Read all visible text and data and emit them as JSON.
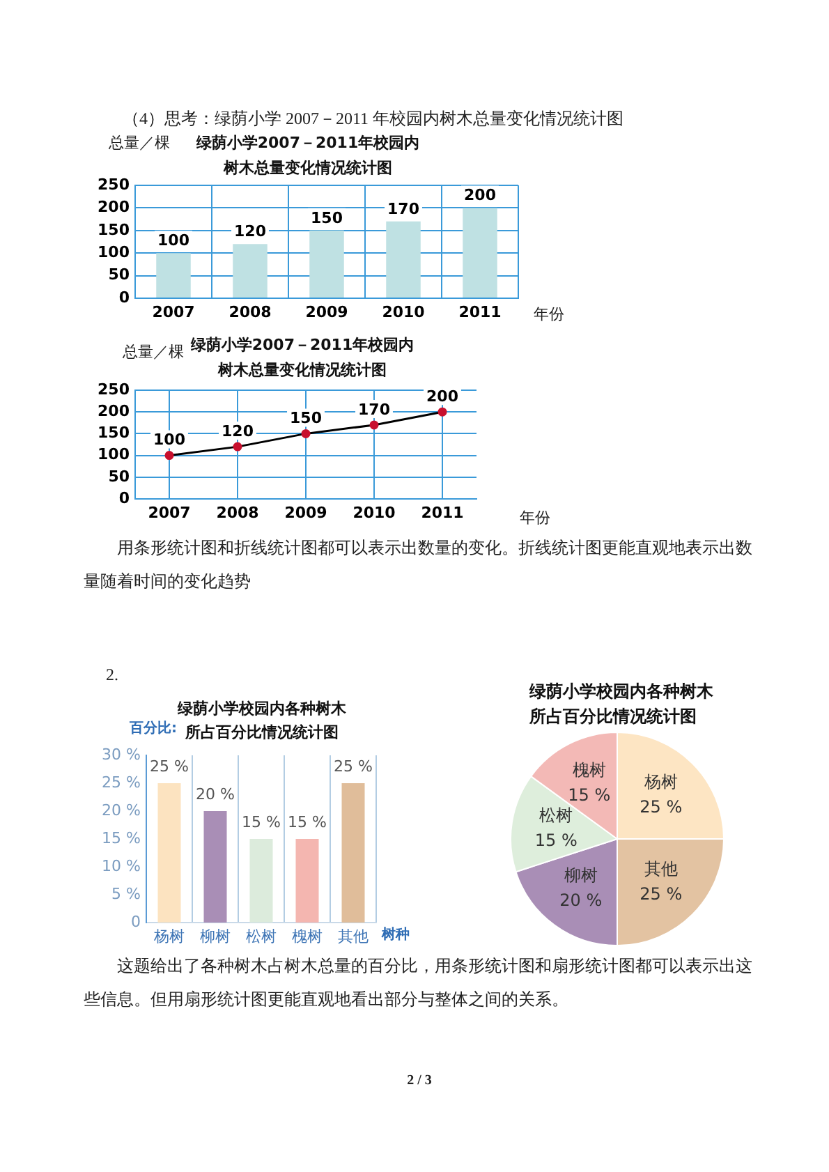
{
  "chart_data": [
    {
      "type": "bar",
      "title": "绿荫小学2007－2011年校园内树木总量变化情况统计图",
      "annotations": [
        "（4）思考：绿荫小学 2007－2011 年校园内树木总量变化情况统计图"
      ],
      "xlabel": "年份",
      "ylabel": "总量／棵",
      "categories": [
        "2007",
        "2008",
        "2009",
        "2010",
        "2011"
      ],
      "values": [
        100,
        120,
        150,
        170,
        200
      ],
      "color": "#bfe1e3",
      "ylim": [
        0,
        250
      ],
      "yticks": [
        0,
        50,
        100,
        150,
        200,
        250
      ],
      "grid": true,
      "data_labels": true
    },
    {
      "type": "line",
      "title": "绿荫小学2007－2011年校园内树木总量变化情况统计图",
      "annotations": [
        "用条形统计图和折线统计图都可以表示出数量的变化。折线统计图更能直观地表示出数量随着时间的变化趋势"
      ],
      "xlabel": "年份",
      "ylabel": "总量／棵",
      "categories": [
        "2007",
        "2008",
        "2009",
        "2010",
        "2011"
      ],
      "values": [
        100,
        120,
        150,
        170,
        200
      ],
      "color": "#000000",
      "marker": "circle",
      "ylim": [
        0,
        250
      ],
      "yticks": [
        0,
        50,
        100,
        150,
        200,
        250
      ],
      "grid": true,
      "data_labels": true
    },
    {
      "type": "bar",
      "title": "绿荫小学校园内各种树木所占百分比情况统计图",
      "annotations": [
        "2."
      ],
      "xlabel": "树种",
      "ylabel": "百分比:",
      "categories": [
        "杨树",
        "柳树",
        "松树",
        "槐树",
        "其他"
      ],
      "values": [
        25,
        20,
        15,
        15,
        25
      ],
      "colors": [
        "#fce3c0",
        "#a98eb6",
        "#dcebdc",
        "#f4b6b0",
        "#e0bd9a"
      ],
      "value_labels": [
        "25 %",
        "20 %",
        "15 %",
        "15 %",
        "25 %"
      ],
      "ylim": [
        0,
        30
      ],
      "yticks": [
        0,
        {
          "value": 5,
          "label": "5 %"
        },
        {
          "value": 10,
          "label": "10 %"
        },
        {
          "value": 15,
          "label": "15 %"
        },
        {
          "value": 20,
          "label": "20 %"
        },
        {
          "value": 25,
          "label": "25 %"
        },
        {
          "value": 30,
          "label": "30 %"
        }
      ],
      "grid": "x"
    },
    {
      "type": "pie",
      "title": "绿荫小学校园内各种树木所占百分比情况统计图",
      "annotations": [
        "这题给出了各种树木占树木总量的百分比，用条形统计图和扇形统计图都可以表示出这些信息。但用扇形统计图更能直观地看出部分与整体之间的关系。",
        "2 / 3"
      ],
      "categories": [
        "杨树",
        "其他",
        "柳树",
        "松树",
        "槐树"
      ],
      "values": [
        25,
        25,
        20,
        15,
        15
      ],
      "colors": [
        "#fde5c3",
        "#e3c3a2",
        "#a98eb6",
        "#deeedc",
        "#f3b9b6"
      ],
      "value_labels": [
        "25 %",
        "25 %",
        "20 %",
        "15 %",
        "15 %"
      ]
    }
  ]
}
